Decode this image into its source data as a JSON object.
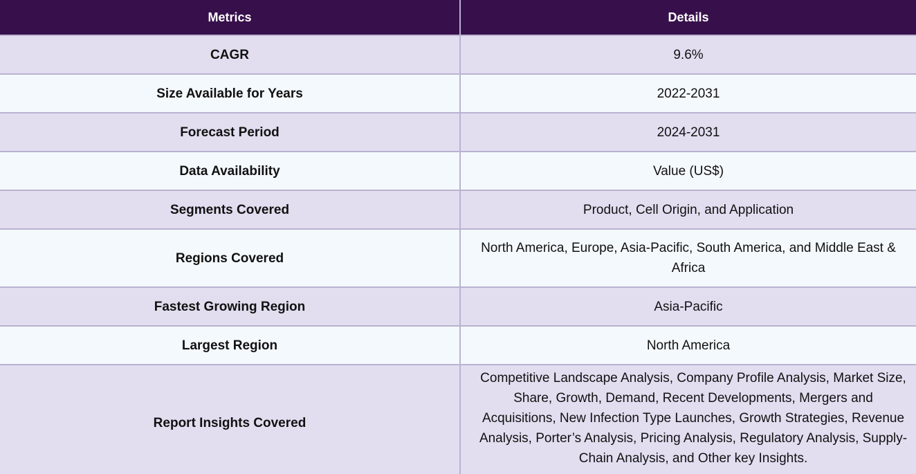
{
  "table": {
    "headers": [
      "Metrics",
      "Details"
    ],
    "rows": [
      {
        "metric": "CAGR",
        "detail": "9.6%"
      },
      {
        "metric": "Size Available for Years",
        "detail": "2022-2031"
      },
      {
        "metric": "Forecast Period",
        "detail": "2024-2031"
      },
      {
        "metric": "Data Availability",
        "detail": "Value (US$)"
      },
      {
        "metric": "Segments Covered",
        "detail": "Product, Cell Origin, and Application"
      },
      {
        "metric": "Regions Covered",
        "detail": "North America, Europe, Asia-Pacific, South America, and Middle East & Africa"
      },
      {
        "metric": "Fastest Growing Region",
        "detail": "Asia-Pacific"
      },
      {
        "metric": "Largest Region",
        "detail": "North America"
      },
      {
        "metric": "Report Insights Covered",
        "detail": "Competitive Landscape Analysis, Company Profile Analysis, Market Size, Share, Growth, Demand, Recent Developments, Mergers and Acquisitions, New Infection Type Launches, Growth Strategies, Revenue Analysis, Porter’s Analysis, Pricing Analysis, Regulatory Analysis, Supply-Chain Analysis, and Other key Insights."
      }
    ]
  },
  "colors": {
    "header_bg": "#37104b",
    "header_text": "#ffffff",
    "row_odd_bg": "#e2def0",
    "row_even_bg": "#f4f9fd",
    "border": "#b9b2d0"
  }
}
